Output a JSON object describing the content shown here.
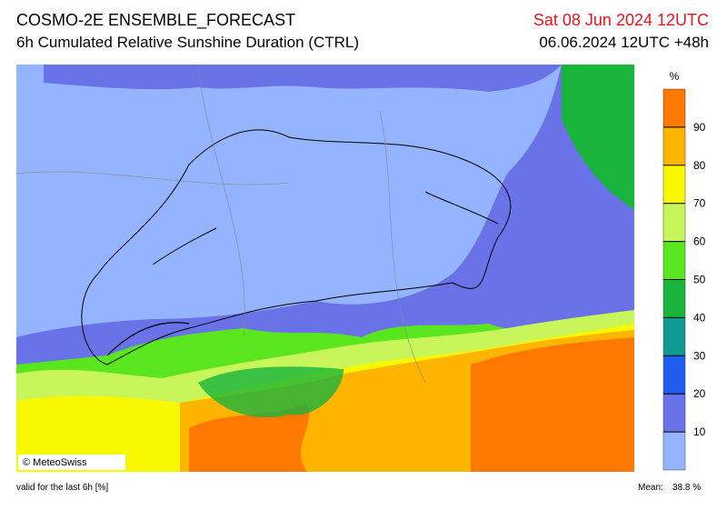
{
  "header": {
    "title": "COSMO-2E ENSEMBLE_FORECAST",
    "subtitle": "6h Cumulated Relative Sunshine Duration (CTRL)",
    "valid_time": "Sat 08 Jun 2024 12UTC",
    "run": "06.06.2024 12UTC +48h"
  },
  "colorbar": {
    "unit": "%",
    "ticks": [
      10,
      20,
      30,
      40,
      50,
      60,
      70,
      80,
      90
    ],
    "colors": [
      "#94b4ff",
      "#6a72e8",
      "#1f5cf0",
      "#0e9a90",
      "#18b43c",
      "#5ae61e",
      "#c8f55a",
      "#f8f800",
      "#ffb400",
      "#ff7800"
    ]
  },
  "credit": "© MeteoSwiss",
  "footer": {
    "note": "valid for the last 6h [%]",
    "mean_label": "Mean:",
    "mean": "38.8 %"
  }
}
